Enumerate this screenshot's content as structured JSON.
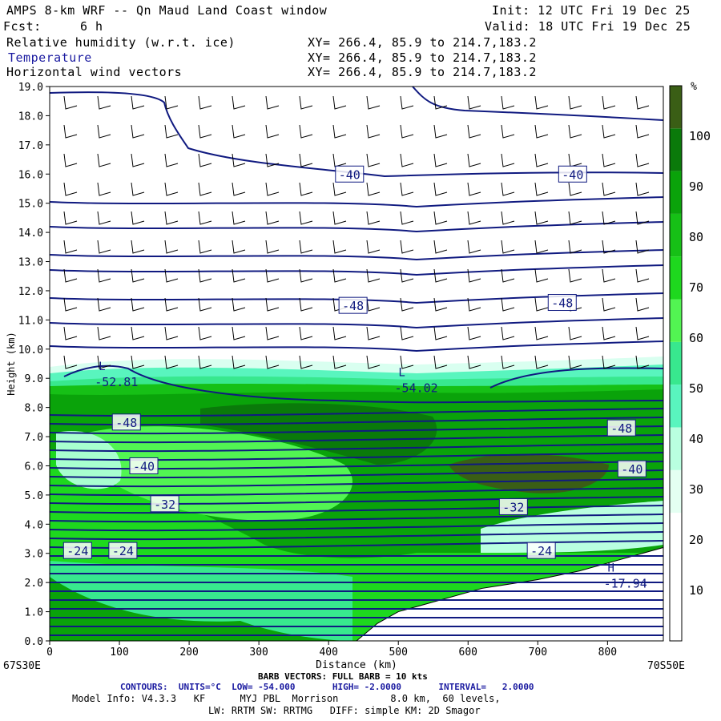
{
  "header": {
    "title": "AMPS 8-km WRF -- Qn Maud Land Coast window",
    "init": "Init: 12 UTC Fri 19 Dec 25",
    "fcst_label": "Fcst:",
    "fcst_value": "6 h",
    "valid": "Valid: 18 UTC Fri 19 Dec 25",
    "fields": [
      {
        "name": "Relative humidity (w.r.t. ice)",
        "xy": "XY= 266.4, 85.9 to 214.7,183.2"
      },
      {
        "name": "Temperature",
        "xy": "XY= 266.4, 85.9 to 214.7,183.2"
      },
      {
        "name": "Horizontal wind vectors",
        "xy": "XY= 266.4, 85.9 to 214.7,183.2"
      }
    ]
  },
  "footer": {
    "left_coord": "67S30E",
    "right_coord": "70S50E",
    "barb_note": "BARB VECTORS: FULL BARB = 10 kts",
    "contours": "CONTOURS:  UNITS=°C  LOW= -54.000       HIGH= -2.0000       INTERVAL=   2.0000",
    "model_info": "Model Info: V4.3.3   KF      MYJ PBL  Morrison         8.0 km,  60 levels,",
    "model_info2": "LW: RRTM SW: RRTMG   DIFF: simple KM: 2D Smagor"
  },
  "colorbar": {
    "unit": "%",
    "ticks": [
      10,
      20,
      30,
      40,
      50,
      60,
      70,
      80,
      90,
      100
    ],
    "colors": [
      "#ffffff",
      "#ffffff",
      "#ffffff",
      "#e4fff2",
      "#b9ffe0",
      "#59f5be",
      "#38e88e",
      "#52f552",
      "#1ed81e",
      "#16c016",
      "#0aa30a",
      "#0a7a0a",
      "#3a5e15"
    ]
  },
  "chart_data": {
    "type": "heatmap",
    "xlabel": "Distance (km)",
    "ylabel": "Height (km)",
    "xlim": [
      0,
      880
    ],
    "ylim": [
      0,
      19
    ],
    "xticks": [
      0,
      100,
      200,
      300,
      400,
      500,
      600,
      700,
      800
    ],
    "yticks": [
      0.0,
      1.0,
      2.0,
      3.0,
      4.0,
      5.0,
      6.0,
      7.0,
      8.0,
      9.0,
      10.0,
      11.0,
      12.0,
      13.0,
      14.0,
      15.0,
      16.0,
      17.0,
      18.0,
      19.0
    ],
    "terrain_height_km": [
      [
        0,
        0
      ],
      [
        440,
        0
      ],
      [
        470,
        0.6
      ],
      [
        500,
        1.0
      ],
      [
        560,
        1.4
      ],
      [
        620,
        1.8
      ],
      [
        700,
        2.1
      ],
      [
        760,
        2.4
      ],
      [
        880,
        3.2
      ]
    ],
    "temperature_contours_c": [
      {
        "label": "-40",
        "x": 430,
        "y": 16.0
      },
      {
        "label": "-40",
        "x": 750,
        "y": 16.0
      },
      {
        "label": "-48",
        "x": 435,
        "y": 11.5
      },
      {
        "label": "-48",
        "x": 735,
        "y": 11.6
      },
      {
        "label": "-48",
        "x": 110,
        "y": 7.5
      },
      {
        "label": "-48",
        "x": 820,
        "y": 7.3
      },
      {
        "label": "-40",
        "x": 135,
        "y": 6.0
      },
      {
        "label": "-40",
        "x": 835,
        "y": 5.9
      },
      {
        "label": "-32",
        "x": 165,
        "y": 4.7
      },
      {
        "label": "-32",
        "x": 665,
        "y": 4.6
      },
      {
        "label": "-24",
        "x": 40,
        "y": 3.1
      },
      {
        "label": "-24",
        "x": 105,
        "y": 3.1
      },
      {
        "label": "-24",
        "x": 705,
        "y": 3.1
      }
    ],
    "extrema": [
      {
        "kind": "L",
        "value": "-52.81",
        "x": 75,
        "y": 9.0
      },
      {
        "kind": "L",
        "value": "-54.02",
        "x": 505,
        "y": 8.8
      },
      {
        "kind": "H",
        "value": "-17.94",
        "x": 805,
        "y": 2.1
      }
    ]
  }
}
